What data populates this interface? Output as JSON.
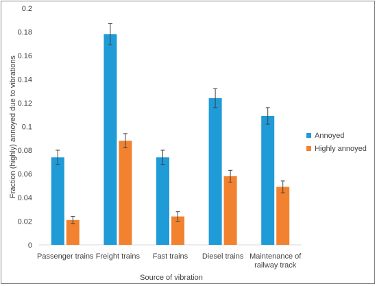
{
  "chart_data": {
    "type": "bar",
    "title": "",
    "xlabel": "Source of vibration",
    "ylabel": "Fraction (highly) annoyed due to vibrations",
    "ylim": [
      0,
      0.2
    ],
    "yticks": [
      "0",
      "0.02",
      "0.04",
      "0.06",
      "0.08",
      "0.1",
      "0.12",
      "0.14",
      "0.16",
      "0.18",
      "0.2"
    ],
    "grid": false,
    "legend_position": "right",
    "categories": [
      [
        "Passenger trains"
      ],
      [
        "Freight trains"
      ],
      [
        "Fast trains"
      ],
      [
        "Diesel trains"
      ],
      [
        "Maintenance of",
        "railway track"
      ]
    ],
    "series": [
      {
        "name": "Annoyed",
        "color": "#1f9bd7",
        "values": [
          0.074,
          0.178,
          0.074,
          0.124,
          0.109
        ],
        "errors": [
          0.006,
          0.009,
          0.006,
          0.008,
          0.007
        ]
      },
      {
        "name": "Highly annoyed",
        "color": "#f28130",
        "values": [
          0.021,
          0.088,
          0.024,
          0.058,
          0.049
        ],
        "errors": [
          0.003,
          0.006,
          0.004,
          0.005,
          0.005
        ]
      }
    ]
  }
}
